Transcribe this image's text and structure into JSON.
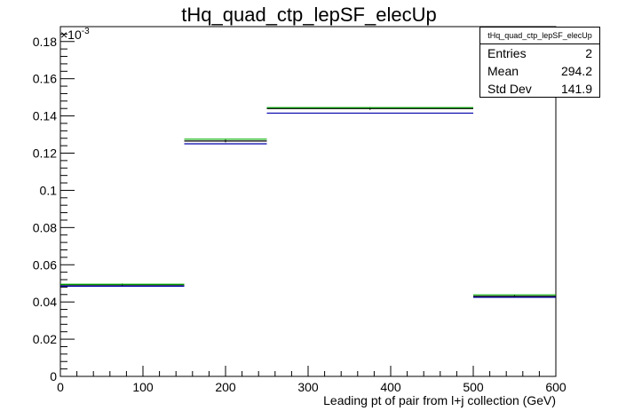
{
  "title": "tHq_quad_ctp_lepSF_elecUp",
  "stats_box": {
    "name": "tHq_quad_ctp_lepSF_elecUp",
    "rows": [
      {
        "label": "Entries",
        "value": "2"
      },
      {
        "label": "Mean",
        "value": "294.2"
      },
      {
        "label": "Std Dev",
        "value": "141.9"
      }
    ]
  },
  "chart_data": {
    "type": "histogram",
    "title": "tHq_quad_ctp_lepSF_elecUp",
    "xlabel": "Leading pt of pair from l+j collection (GeV)",
    "ylabel": "",
    "y_exponent_label": "×10",
    "y_exponent_power": "-3",
    "xlim": [
      0,
      600
    ],
    "ylim": [
      0,
      0.188
    ],
    "x_ticks": [
      0,
      100,
      200,
      300,
      400,
      500,
      600
    ],
    "y_ticks": [
      "0",
      "0.02",
      "0.04",
      "0.06",
      "0.08",
      "0.1",
      "0.12",
      "0.14",
      "0.16",
      "0.18"
    ],
    "bin_edges": [
      0,
      150,
      250,
      500,
      600
    ],
    "series": [
      {
        "color": "#000000",
        "values": [
          0.0492,
          0.1265,
          0.144,
          0.043
        ]
      },
      {
        "color": "#00aa00",
        "values": [
          0.0495,
          0.1275,
          0.1445,
          0.0438
        ]
      },
      {
        "color": "#0000aa",
        "values": [
          0.0485,
          0.125,
          0.1415,
          0.0425
        ]
      }
    ]
  }
}
